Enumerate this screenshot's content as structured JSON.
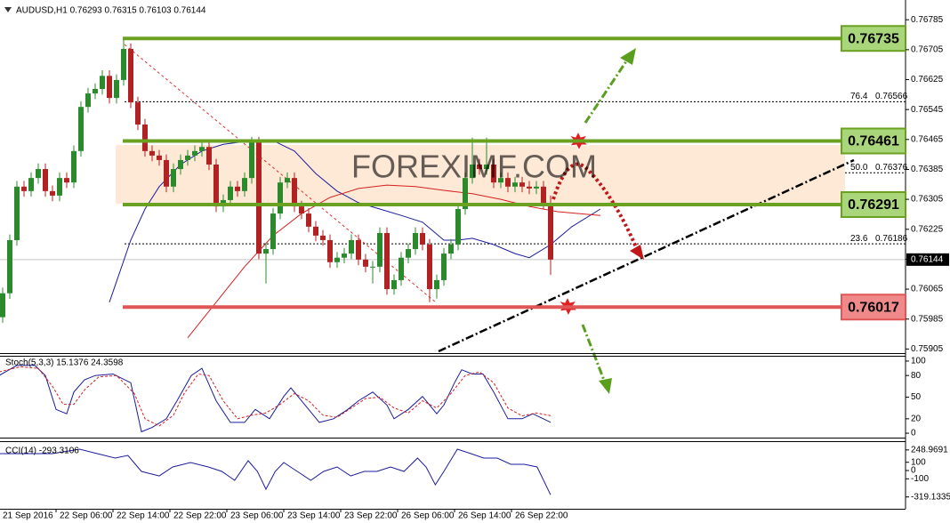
{
  "chart_data": [
    {
      "type": "candlestick",
      "title": "AUDUSD,H1 0.76293 0.76315 0.76103 0.76144",
      "watermark": "FOREXIMF.COM",
      "up_color": "#2b8a2b",
      "down_color": "#b32222",
      "xlim": [
        -0.375,
        126.875
      ],
      "ylim": [
        0.75894,
        0.76833
      ],
      "yticks": [
        0.76785,
        0.76705,
        0.76625,
        0.76545,
        0.76465,
        0.76385,
        0.76305,
        0.76225,
        0.76145,
        0.76065,
        0.75985,
        0.75905
      ],
      "xticks": [
        {
          "value": -0.5,
          "label": "21 Sep 2016"
        },
        {
          "value": 7.5,
          "label": "22 Sep 06:00"
        },
        {
          "value": 15.5,
          "label": "22 Sep 14:00"
        },
        {
          "value": 23.5,
          "label": "22 Sep 22:00"
        },
        {
          "value": 31.5,
          "label": "23 Sep 06:00"
        },
        {
          "value": 39.5,
          "label": "23 Sep 14:00"
        },
        {
          "value": 47.5,
          "label": "23 Sep 22:00"
        },
        {
          "value": 55.5,
          "label": "26 Sep 06:00"
        },
        {
          "value": 63.5,
          "label": "26 Sep 14:00"
        },
        {
          "value": 71.5,
          "label": "26 Sep 22:00"
        }
      ],
      "last": 0.76144,
      "levels": [
        {
          "value": 0.76735,
          "color": "#6aa121",
          "fill": "#a9d67a"
        },
        {
          "value": 0.76461,
          "color": "#6aa121",
          "fill": "#a9d67a"
        },
        {
          "value": 0.76291,
          "color": "#6aa121",
          "fill": "#a9d67a"
        },
        {
          "value": 0.76017,
          "color": "#e05555",
          "fill": "#f08a8a"
        }
      ],
      "fib": [
        {
          "name": "76.4",
          "value": 0.76566
        },
        {
          "name": "50.0",
          "value": 0.76376
        },
        {
          "name": "23.6",
          "value": 0.76186
        }
      ],
      "candles": [
        [
          0.7599,
          0.76069,
          0.75975,
          0.76054
        ],
        [
          0.76054,
          0.76211,
          0.76039,
          0.76196
        ],
        [
          0.76196,
          0.76354,
          0.76181,
          0.76339
        ],
        [
          0.76339,
          0.76354,
          0.76312,
          0.76327
        ],
        [
          0.76327,
          0.76377,
          0.76312,
          0.76362
        ],
        [
          0.76362,
          0.76401,
          0.76347,
          0.76386
        ],
        [
          0.76386,
          0.76401,
          0.76312,
          0.76327
        ],
        [
          0.76327,
          0.76342,
          0.763,
          0.76315
        ],
        [
          0.76315,
          0.76377,
          0.763,
          0.76362
        ],
        [
          0.76362,
          0.76377,
          0.76335,
          0.7635
        ],
        [
          0.7635,
          0.76449,
          0.76335,
          0.76434
        ],
        [
          0.76434,
          0.76567,
          0.76419,
          0.76552
        ],
        [
          0.76552,
          0.76603,
          0.76537,
          0.76588
        ],
        [
          0.76588,
          0.76615,
          0.76573,
          0.766
        ],
        [
          0.766,
          0.7665,
          0.76585,
          0.76635
        ],
        [
          0.76635,
          0.7665,
          0.76561,
          0.76576
        ],
        [
          0.76576,
          0.76639,
          0.76561,
          0.76624
        ],
        [
          0.76624,
          0.76735,
          0.76609,
          0.76707
        ],
        [
          0.76707,
          0.76722,
          0.76549,
          0.76564
        ],
        [
          0.76564,
          0.76579,
          0.7649,
          0.76505
        ],
        [
          0.76505,
          0.7652,
          0.76419,
          0.76434
        ],
        [
          0.76434,
          0.76449,
          0.76407,
          0.76422
        ],
        [
          0.76422,
          0.76437,
          0.76395,
          0.7641
        ],
        [
          0.7641,
          0.76425,
          0.76324,
          0.76339
        ],
        [
          0.76339,
          0.76401,
          0.76324,
          0.76386
        ],
        [
          0.76386,
          0.76425,
          0.76371,
          0.7641
        ],
        [
          0.7641,
          0.76437,
          0.76395,
          0.76422
        ],
        [
          0.76422,
          0.76449,
          0.76407,
          0.76434
        ],
        [
          0.76434,
          0.7646,
          0.76419,
          0.76445
        ],
        [
          0.76445,
          0.7646,
          0.76383,
          0.76398
        ],
        [
          0.76398,
          0.76413,
          0.76271,
          0.76286
        ],
        [
          0.76286,
          0.76318,
          0.76271,
          0.76303
        ],
        [
          0.76303,
          0.76354,
          0.76288,
          0.76339
        ],
        [
          0.76339,
          0.76354,
          0.76312,
          0.76327
        ],
        [
          0.76327,
          0.76377,
          0.76312,
          0.76362
        ],
        [
          0.76362,
          0.76472,
          0.76347,
          0.76457
        ],
        [
          0.76457,
          0.76472,
          0.76145,
          0.7616
        ],
        [
          0.7616,
          0.76187,
          0.7608,
          0.76172
        ],
        [
          0.76172,
          0.76282,
          0.76157,
          0.76267
        ],
        [
          0.76267,
          0.76365,
          0.76252,
          0.7635
        ],
        [
          0.7635,
          0.76377,
          0.76335,
          0.76362
        ],
        [
          0.76362,
          0.76377,
          0.76271,
          0.76286
        ],
        [
          0.76286,
          0.76301,
          0.76252,
          0.76267
        ],
        [
          0.76267,
          0.76282,
          0.76217,
          0.76232
        ],
        [
          0.76232,
          0.76247,
          0.76193,
          0.76208
        ],
        [
          0.76208,
          0.76223,
          0.76181,
          0.76196
        ],
        [
          0.76196,
          0.76211,
          0.76122,
          0.76137
        ],
        [
          0.76137,
          0.76164,
          0.76122,
          0.76149
        ],
        [
          0.76149,
          0.76175,
          0.76134,
          0.7616
        ],
        [
          0.7616,
          0.76211,
          0.76145,
          0.76196
        ],
        [
          0.76196,
          0.76211,
          0.76129,
          0.76144
        ],
        [
          0.76144,
          0.76159,
          0.7611,
          0.76125
        ],
        [
          0.76125,
          0.7614,
          0.7608,
          0.76125
        ],
        [
          0.76125,
          0.7623,
          0.7611,
          0.76215
        ],
        [
          0.76215,
          0.7623,
          0.7605,
          0.76065
        ],
        [
          0.76065,
          0.76104,
          0.7605,
          0.76089
        ],
        [
          0.76089,
          0.76164,
          0.76074,
          0.76149
        ],
        [
          0.76149,
          0.76187,
          0.76134,
          0.76172
        ],
        [
          0.76172,
          0.7623,
          0.76157,
          0.76215
        ],
        [
          0.76215,
          0.7623,
          0.76169,
          0.76184
        ],
        [
          0.76184,
          0.76199,
          0.7603,
          0.76065
        ],
        [
          0.76065,
          0.76104,
          0.7604,
          0.76089
        ],
        [
          0.76089,
          0.76175,
          0.76074,
          0.7616
        ],
        [
          0.7616,
          0.76199,
          0.76145,
          0.76184
        ],
        [
          0.76184,
          0.76294,
          0.76169,
          0.76279
        ],
        [
          0.76279,
          0.76377,
          0.76264,
          0.76362
        ],
        [
          0.76362,
          0.7647,
          0.76347,
          0.76398
        ],
        [
          0.76398,
          0.76413,
          0.76371,
          0.76386
        ],
        [
          0.76386,
          0.7647,
          0.76371,
          0.76398
        ],
        [
          0.76398,
          0.76413,
          0.76335,
          0.7635
        ],
        [
          0.7635,
          0.76377,
          0.76335,
          0.76362
        ],
        [
          0.76362,
          0.76377,
          0.76324,
          0.76339
        ],
        [
          0.76339,
          0.76365,
          0.76324,
          0.7635
        ],
        [
          0.7635,
          0.76365,
          0.76324,
          0.76339
        ],
        [
          0.76339,
          0.76354,
          0.76319,
          0.76334
        ],
        [
          0.76334,
          0.76354,
          0.76319,
          0.76339
        ],
        [
          0.76339,
          0.76354,
          0.76278,
          0.76293
        ],
        [
          0.76293,
          0.76315,
          0.76103,
          0.76144
        ]
      ],
      "series": [
        {
          "color": "#1c1c9c",
          "x": [
            15,
            18,
            20,
            22,
            25,
            28,
            31,
            35,
            38,
            41,
            44,
            47,
            50,
            53,
            56,
            59,
            62,
            64,
            66,
            69,
            72,
            74,
            77,
            80,
            84
          ],
          "values": [
            0.7603,
            0.76196,
            0.76279,
            0.76339,
            0.76398,
            0.76434,
            0.76452,
            0.76462,
            0.76462,
            0.76434,
            0.76374,
            0.76327,
            0.76296,
            0.76279,
            0.76262,
            0.76244,
            0.76196,
            0.76196,
            0.76201,
            0.76184,
            0.7616,
            0.76149,
            0.76184,
            0.76232,
            0.76279
          ]
        },
        {
          "color": "#d42020",
          "x": [
            26,
            30,
            34,
            38,
            42,
            46,
            50,
            54,
            58,
            62,
            66,
            70,
            74,
            78,
            84
          ],
          "values": [
            0.75935,
            0.7603,
            0.76125,
            0.76208,
            0.76267,
            0.7631,
            0.76334,
            0.76343,
            0.76339,
            0.76329,
            0.7632,
            0.76305,
            0.76286,
            0.76272,
            0.76262
          ]
        }
      ]
    },
    {
      "type": "line",
      "title": "Stoch(5,3,3) 15.1376 24.3598",
      "xlim": [
        -0.375,
        126.875
      ],
      "ylim": [
        -6.1,
        106.1
      ],
      "yticks": [
        100,
        80,
        50,
        20,
        0
      ],
      "series": [
        {
          "color": "#1c1c9c",
          "x": [
            -0.5,
            2,
            4.5,
            6,
            7.5,
            9,
            10,
            11.5,
            13,
            15.5,
            18,
            19.5,
            21,
            23,
            24.5,
            26.5,
            28,
            30,
            32,
            34,
            35.5,
            37.5,
            39.5,
            40.5,
            42.5,
            44.5,
            46.5,
            48.5,
            50,
            52,
            54,
            55,
            57,
            59,
            61,
            62,
            63.5,
            64.5,
            66,
            67.5,
            69,
            71,
            73,
            74.5,
            77
          ],
          "values": [
            80,
            94,
            94,
            80,
            33,
            27,
            57,
            74,
            80,
            82,
            70,
            2,
            8,
            20,
            45,
            80,
            90,
            45,
            15,
            15,
            33,
            20,
            51,
            63,
            39,
            15,
            20,
            33,
            45,
            57,
            39,
            20,
            33,
            51,
            27,
            39,
            70,
            88,
            82,
            82,
            57,
            20,
            20,
            27,
            15.1376
          ]
        },
        {
          "color": "#d42020",
          "dash": "3,2",
          "x": [
            -0.5,
            2.5,
            5,
            7,
            8.5,
            10,
            11.5,
            13.5,
            16,
            18.5,
            20,
            22,
            24,
            25.5,
            27.5,
            29,
            31,
            33,
            35,
            37,
            39,
            41,
            43,
            45,
            47,
            49,
            51,
            53,
            55,
            57,
            59,
            61,
            63,
            65,
            67,
            69,
            71,
            73,
            75,
            77
          ],
          "values": [
            85,
            92,
            90,
            65,
            40,
            40,
            60,
            78,
            80,
            55,
            20,
            10,
            25,
            55,
            82,
            80,
            45,
            20,
            25,
            28,
            40,
            55,
            45,
            25,
            22,
            35,
            48,
            50,
            35,
            28,
            45,
            35,
            55,
            80,
            85,
            70,
            35,
            24,
            28,
            24.3598
          ]
        }
      ]
    },
    {
      "type": "line",
      "title": "CCI(14) -293.3106",
      "xlim": [
        -0.375,
        126.875
      ],
      "ylim": [
        -462,
        344
      ],
      "yticks": [
        248.9691,
        100,
        0,
        -100,
        -319.1335
      ],
      "series": [
        {
          "color": "#1c1c9c",
          "x": [
            -0.5,
            3.3,
            7,
            10.8,
            13.3,
            15.8,
            17.6,
            19.5,
            22,
            23.9,
            26.4,
            28.9,
            30.8,
            32.6,
            34.5,
            35.8,
            37,
            38.3,
            39.5,
            41.4,
            43.3,
            45.1,
            47,
            48.9,
            50.8,
            52.6,
            54.5,
            56.4,
            58.3,
            59.5,
            60.8,
            62,
            63.9,
            65.8,
            67.6,
            69.5,
            71.4,
            73.3,
            75.1,
            77
          ],
          "values": [
            204,
            204,
            204,
            258,
            204,
            151,
            183,
            -11,
            -65,
            43,
            97,
            43,
            -11,
            -118,
            118,
            -11,
            -226,
            -11,
            97,
            -11,
            -118,
            -11,
            43,
            -65,
            -11,
            -11,
            43,
            -11,
            151,
            43,
            -172,
            -11,
            258,
            204,
            151,
            151,
            75,
            75,
            43,
            -293.3106
          ]
        }
      ]
    }
  ]
}
